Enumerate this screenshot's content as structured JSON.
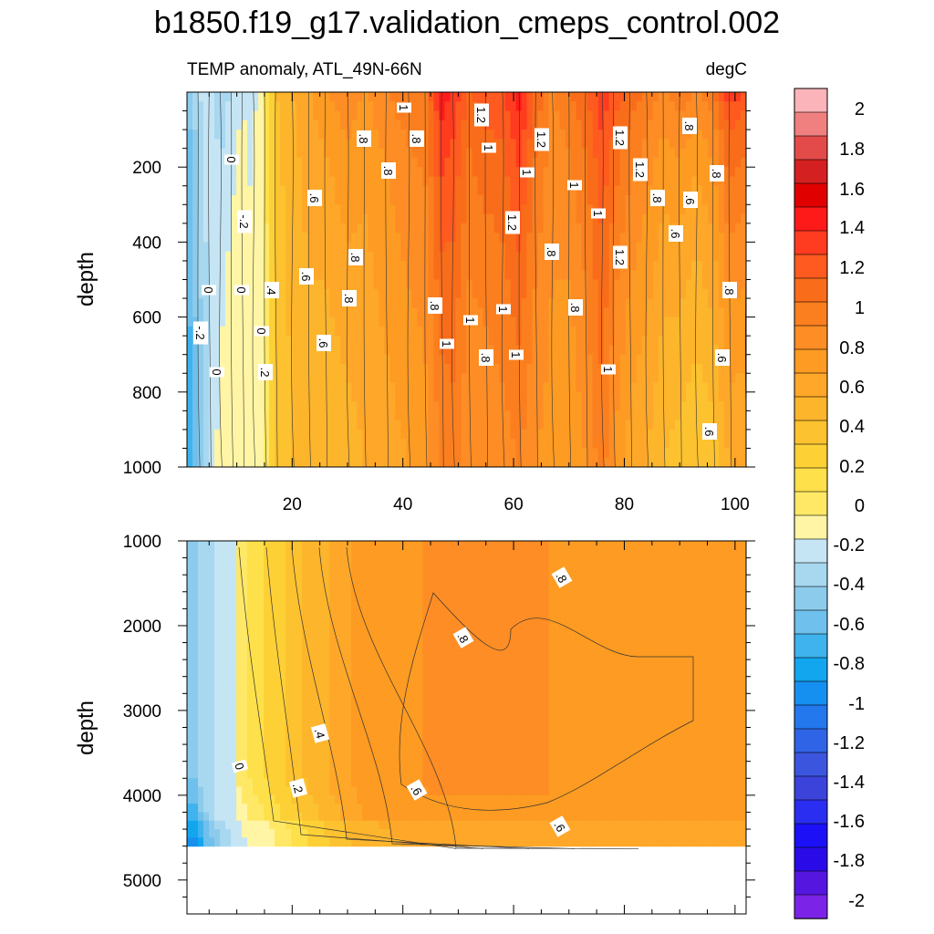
{
  "chart_data": {
    "type": "heatmap",
    "title": "b1850.f19_g17.validation_cmeps_control.002",
    "subtitle_left": "TEMP anomaly, ATL_49N-66N",
    "subtitle_right": "degC",
    "colorbar": {
      "levels": [
        "2",
        "1.8",
        "1.6",
        "1.4",
        "1.2",
        "1",
        "0.8",
        "0.6",
        "0.4",
        "0.2",
        "0",
        "-0.2",
        "-0.4",
        "-0.6",
        "-0.8",
        "-1",
        "-1.2",
        "-1.4",
        "-1.6",
        "-1.8",
        "-2"
      ],
      "level_labels": [
        "2",
        "1.8",
        "1.6",
        "1.4",
        "1.2",
        "1",
        "0.8",
        "0.6",
        "0.4",
        "0.2",
        "0",
        "-0.2",
        "-0.4",
        "-0.6",
        "-0.8",
        "-1",
        "-1.2",
        "-1.4",
        "-1.6",
        "-1.8",
        "-2"
      ],
      "colors": [
        "#fbb4b9",
        "#f08080",
        "#e34a4a",
        "#d42020",
        "#e00000",
        "#ff1a1a",
        "#ff3c1f",
        "#ff5a1f",
        "#f96d1a",
        "#fb7f1f",
        "#fd8d24",
        "#fd9b22",
        "#fea729",
        "#fdb52c",
        "#fdc22f",
        "#fdd036",
        "#fee04a",
        "#fee866",
        "#fff5a5",
        "#c6e5f4",
        "#a8d8f0",
        "#8ccbeb",
        "#6fc0ec",
        "#3fb3ee",
        "#12a6ef",
        "#1690f0",
        "#2378ed",
        "#3064e6",
        "#3b55de",
        "#3b43db",
        "#2a2ef0",
        "#1b10f6",
        "#2a0be8",
        "#5517e0",
        "#7b24e8"
      ]
    },
    "top_panel": {
      "ylabel": "depth",
      "x_ticks": [
        "20",
        "40",
        "60",
        "80",
        "100"
      ],
      "y_ticks": [
        "200",
        "400",
        "600",
        "800",
        "1000"
      ],
      "xlim": [
        1,
        102
      ],
      "ylim": [
        1000,
        0
      ],
      "column_profiles": {
        "x": [
          1,
          3,
          5,
          7,
          9,
          11,
          13,
          15,
          17,
          20,
          23,
          26,
          30,
          33,
          37,
          41,
          44,
          47,
          49,
          52,
          55,
          58,
          61,
          64,
          67,
          70,
          73,
          76,
          78,
          81,
          84,
          87,
          90,
          93,
          96,
          99,
          102
        ],
        "surface": [
          -0.3,
          -0.1,
          0.0,
          -0.2,
          -0.1,
          0.0,
          -0.1,
          0.3,
          0.6,
          0.7,
          0.8,
          0.9,
          1.0,
          0.9,
          1.0,
          1.1,
          1.1,
          1.5,
          1.4,
          1.2,
          1.3,
          1.3,
          1.5,
          1.2,
          1.0,
          1.1,
          1.2,
          1.4,
          1.3,
          1.2,
          1.1,
          1.0,
          1.1,
          1.0,
          1.1,
          1.4,
          1.3
        ],
        "deep": [
          -0.5,
          -0.3,
          -0.1,
          0.05,
          0.1,
          0.08,
          0.1,
          0.2,
          0.5,
          0.6,
          0.65,
          0.6,
          0.65,
          0.7,
          0.75,
          0.8,
          0.85,
          1.0,
          1.05,
          0.9,
          0.9,
          0.95,
          1.0,
          0.9,
          0.85,
          0.8,
          0.9,
          1.05,
          0.9,
          0.75,
          0.7,
          0.6,
          0.55,
          0.5,
          0.55,
          0.7,
          0.7
        ]
      },
      "contour_labels": [
        "1",
        "1.2",
        "1",
        "1.2",
        "1",
        "1.2",
        "1.2",
        "1",
        "1",
        "1",
        "1",
        "1",
        "1",
        "1",
        "1.2",
        "1.2",
        ".8",
        ".8",
        ".8",
        ".8",
        ".8",
        ".8",
        ".8",
        ".8",
        ".8",
        ".8",
        ".8",
        ".8",
        ".8",
        ".6",
        ".6",
        ".6",
        ".6",
        ".6",
        ".6",
        ".6",
        ".4",
        ".2",
        "0",
        "0",
        "0",
        "0",
        "0",
        "-.2",
        "-.2"
      ]
    },
    "bottom_panel": {
      "ylabel": "depth",
      "y_ticks": [
        "1000",
        "2000",
        "3000",
        "4000",
        "5000"
      ],
      "xlim": [
        1,
        102
      ],
      "ylim": [
        5400,
        1000
      ],
      "seafloor_depth": 4630,
      "contour_labels": [
        ".8",
        ".8",
        ".6",
        ".6",
        ".4",
        ".2",
        "0"
      ]
    }
  }
}
